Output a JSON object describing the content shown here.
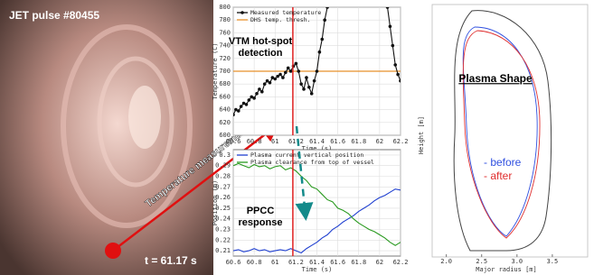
{
  "camera": {
    "label": "JET pulse #80455",
    "time": "t = 61.17 s",
    "arrow_label": "Temperature measurement"
  },
  "chart_data": [
    {
      "type": "line",
      "x_label": "Time (s)",
      "y_label": "Temperature (C)",
      "annotation": [
        "VTM hot-spot",
        "detection"
      ],
      "xlim": [
        60.6,
        62.2
      ],
      "xticks": [
        60.6,
        60.8,
        61,
        61.2,
        61.4,
        61.6,
        61.8,
        62,
        62.2
      ],
      "ylim": [
        600,
        800
      ],
      "yticks": [
        600,
        620,
        640,
        660,
        680,
        700,
        720,
        740,
        760,
        780,
        800
      ],
      "grid": true,
      "legend": "top-left",
      "vline": {
        "value": 61.17,
        "color": "#e02020"
      },
      "hlines": [
        {
          "name": "DHS temp. thresh.",
          "color": "#e8902a",
          "value": 700
        }
      ],
      "x": [
        60.6,
        60.625,
        60.65,
        60.675,
        60.7,
        60.725,
        60.75,
        60.775,
        60.8,
        60.825,
        60.85,
        60.875,
        60.9,
        60.925,
        60.95,
        60.975,
        61.0,
        61.025,
        61.05,
        61.075,
        61.1,
        61.125,
        61.15,
        61.175,
        61.2,
        61.225,
        61.25,
        61.275,
        61.3,
        61.325,
        61.35,
        61.375,
        61.4,
        61.425,
        61.45,
        61.475,
        61.5,
        61.8,
        62.075,
        62.1,
        62.125,
        62.15,
        62.175,
        62.2
      ],
      "series": [
        {
          "name": "Measured temperature",
          "color": "#111111",
          "markers": true,
          "values": [
            632,
            640,
            638,
            645,
            650,
            648,
            655,
            660,
            658,
            665,
            672,
            668,
            680,
            685,
            682,
            690,
            688,
            692,
            695,
            690,
            698,
            705,
            700,
            708,
            712,
            700,
            680,
            672,
            690,
            675,
            665,
            685,
            700,
            730,
            750,
            780,
            800,
            null,
            800,
            770,
            740,
            710,
            695,
            685
          ]
        }
      ]
    },
    {
      "type": "line",
      "x_label": "Time (s)",
      "y_label": "Position (m)",
      "annotation": [
        "PPCC",
        "response"
      ],
      "xlim": [
        60.6,
        62.2
      ],
      "xticks": [
        60.6,
        60.8,
        61,
        61.2,
        61.4,
        61.6,
        61.8,
        62,
        62.2
      ],
      "ylim": [
        0.205,
        0.305
      ],
      "yticks": [
        0.21,
        0.22,
        0.23,
        0.24,
        0.25,
        0.26,
        0.27,
        0.28,
        0.29,
        0.3
      ],
      "grid": true,
      "legend": "top-left",
      "vline": {
        "value": 61.17,
        "color": "#e02020"
      },
      "x": [
        60.6,
        60.65,
        60.7,
        60.75,
        60.8,
        60.85,
        60.9,
        60.95,
        61.0,
        61.05,
        61.1,
        61.15,
        61.2,
        61.25,
        61.3,
        61.35,
        61.4,
        61.45,
        61.5,
        61.55,
        61.6,
        61.65,
        61.7,
        61.75,
        61.8,
        61.85,
        61.9,
        61.95,
        62.0,
        62.05,
        62.1,
        62.15,
        62.2
      ],
      "series": [
        {
          "name": "Plasma current vertical position",
          "color": "#2040d0",
          "markers": false,
          "values": [
            0.21,
            0.211,
            0.209,
            0.21,
            0.212,
            0.21,
            0.211,
            0.209,
            0.21,
            0.211,
            0.21,
            0.212,
            0.21,
            0.208,
            0.212,
            0.215,
            0.218,
            0.222,
            0.225,
            0.23,
            0.233,
            0.237,
            0.24,
            0.243,
            0.247,
            0.25,
            0.253,
            0.257,
            0.26,
            0.262,
            0.265,
            0.268,
            0.267
          ]
        },
        {
          "name": "Plasma clearance from top of vessel",
          "color": "#2a9a20",
          "markers": false,
          "values": [
            0.29,
            0.292,
            0.29,
            0.288,
            0.291,
            0.289,
            0.29,
            0.287,
            0.289,
            0.29,
            0.286,
            0.288,
            0.285,
            0.28,
            0.276,
            0.27,
            0.268,
            0.263,
            0.258,
            0.256,
            0.25,
            0.248,
            0.245,
            0.24,
            0.236,
            0.233,
            0.23,
            0.228,
            0.225,
            0.222,
            0.218,
            0.215,
            0.218
          ]
        }
      ]
    }
  ],
  "plasma_shape": {
    "title": "Plasma Shape",
    "legend": [
      {
        "name": "- before",
        "color": "#3050e0"
      },
      {
        "name": "- after",
        "color": "#e03030"
      }
    ],
    "x_label": "Major radius [m]",
    "y_label": "Height [m]",
    "xlim": [
      1.8,
      4.0
    ],
    "xticks": [
      {
        "value": 2.0,
        "label": "2.0"
      },
      {
        "value": 2.5,
        "label": "2.5"
      },
      {
        "value": 3.0,
        "label": "3.0"
      },
      {
        "value": 3.5,
        "label": "3.5"
      }
    ]
  }
}
